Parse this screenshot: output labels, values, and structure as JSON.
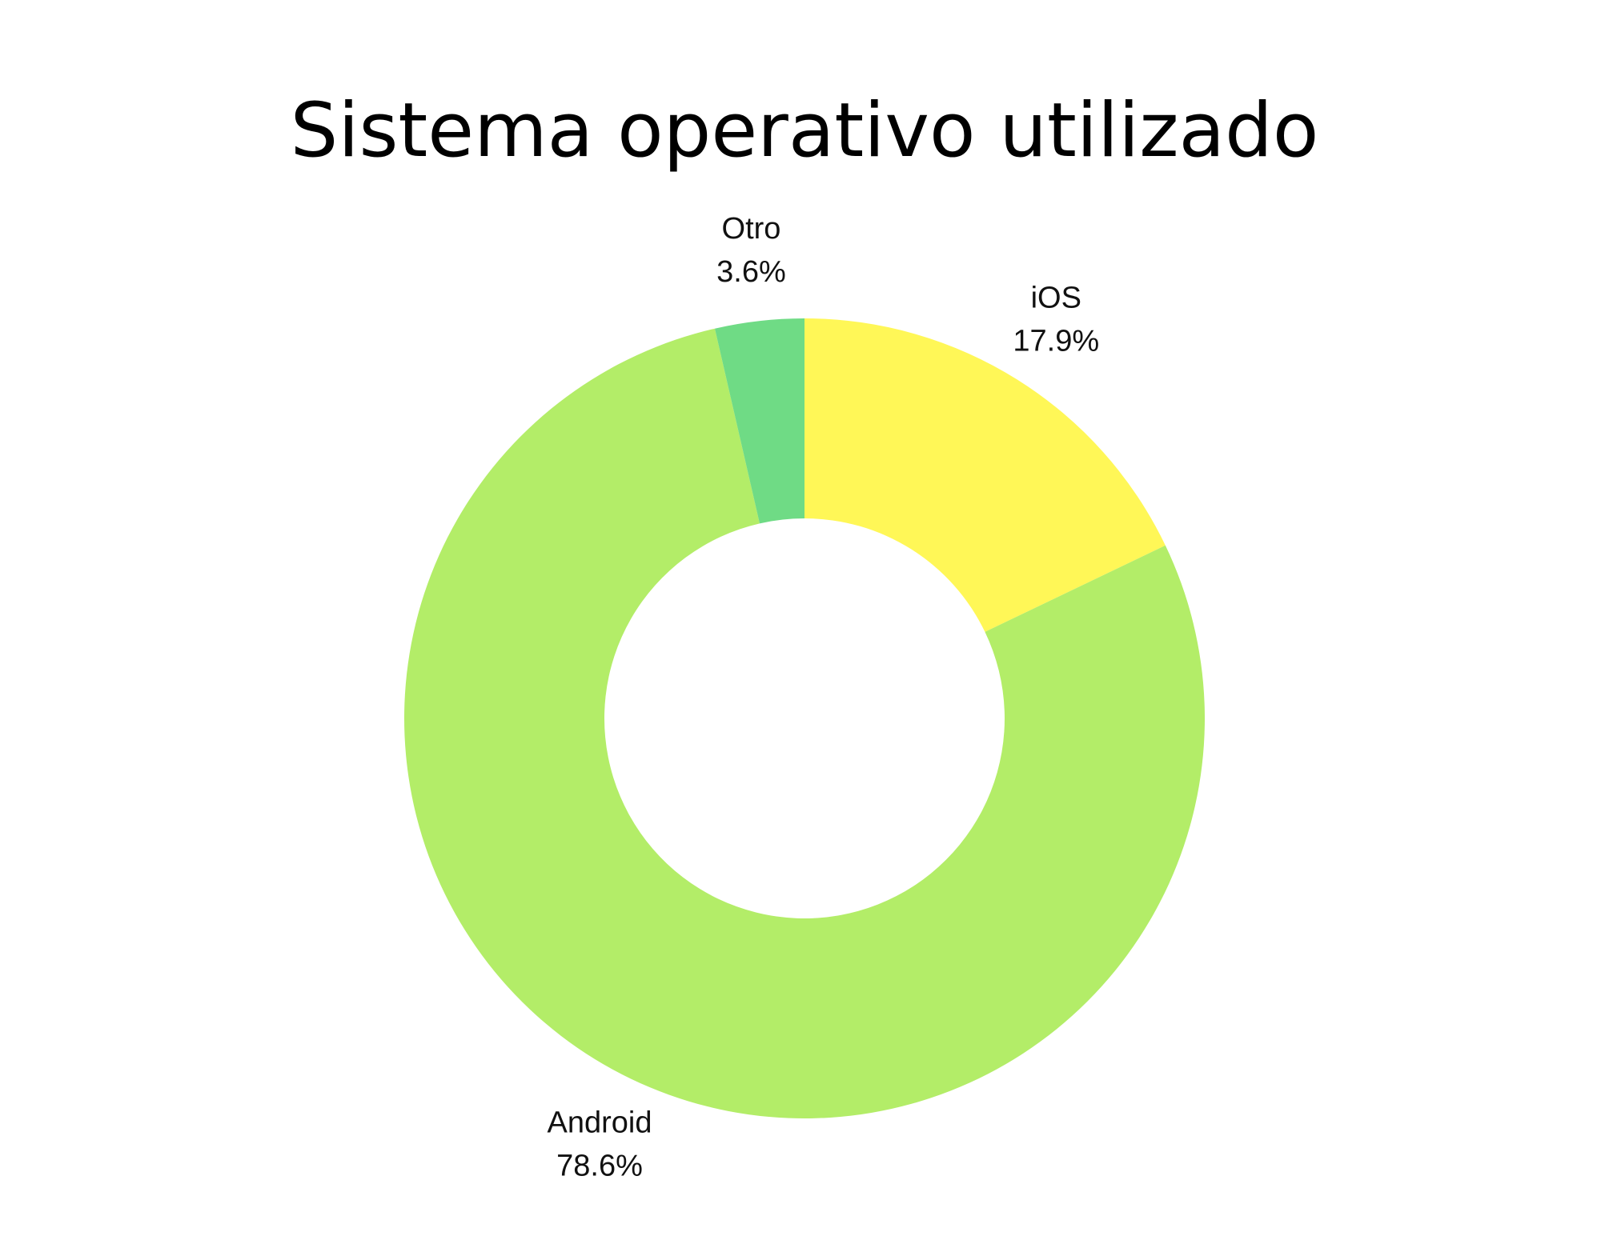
{
  "chart_data": {
    "type": "pie",
    "variant": "donut",
    "title": "Sistema operativo utilizado",
    "slices": [
      {
        "label": "iOS",
        "value": 17.9,
        "value_label": "17.9%",
        "color": "#fff757"
      },
      {
        "label": "Android",
        "value": 78.6,
        "value_label": "78.6%",
        "color": "#b3ed68"
      },
      {
        "label": "Otro",
        "value": 3.6,
        "value_label": "3.6%",
        "color": "#6fdb85"
      }
    ]
  }
}
